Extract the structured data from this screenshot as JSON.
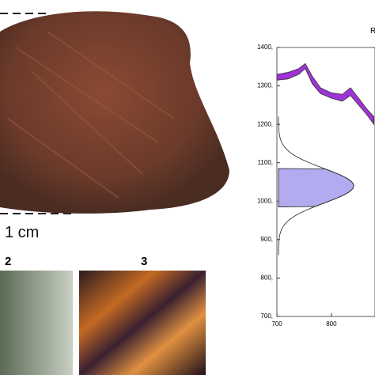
{
  "panel_labels": {
    "scale": "1 cm",
    "panel_2": "2",
    "panel_3": "3"
  },
  "chart_data": {
    "type": "band",
    "title": "R",
    "x": [
      700,
      720,
      740,
      752,
      765,
      780,
      800,
      820,
      835,
      850,
      865,
      878
    ],
    "lower": [
      1315,
      1318,
      1330,
      1345,
      1305,
      1280,
      1268,
      1260,
      1275,
      1250,
      1225,
      1200
    ],
    "upper": [
      1330,
      1335,
      1345,
      1358,
      1325,
      1295,
      1282,
      1278,
      1295,
      1268,
      1240,
      1220
    ],
    "color": "#a033d6",
    "distribution": {
      "mean": 1040,
      "sd": 45,
      "shaded": [
        985,
        1085
      ],
      "color": "#b3abef"
    },
    "xlim": [
      700,
      880
    ],
    "xticks": [
      700,
      800
    ],
    "ylim": [
      700,
      1400
    ],
    "yticks": [
      {
        "value": 700,
        "label": "700,"
      },
      {
        "value": 800,
        "label": "800,"
      },
      {
        "value": 900,
        "label": "900,"
      },
      {
        "value": 1000,
        "label": "1000,"
      },
      {
        "value": 1100,
        "label": "1100,"
      },
      {
        "value": 1200,
        "label": "1200,"
      },
      {
        "value": 1300,
        "label": "1300,"
      },
      {
        "value": 1400,
        "label": "1400,"
      }
    ]
  }
}
